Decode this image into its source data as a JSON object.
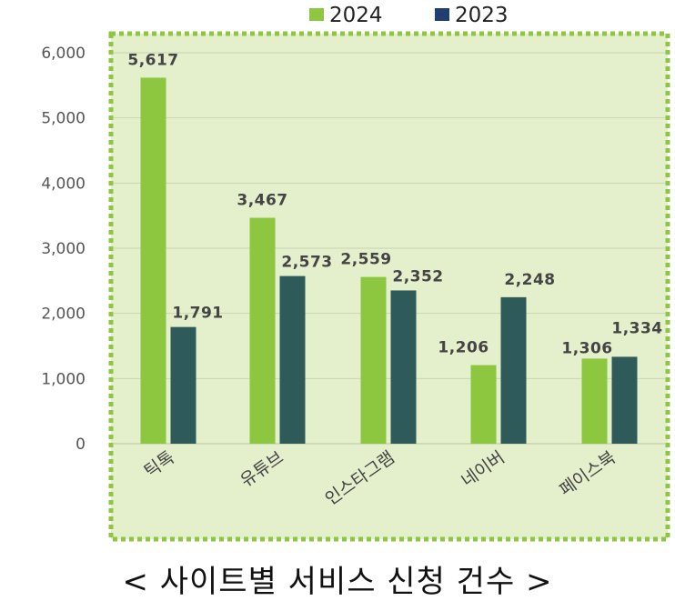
{
  "chart_data": {
    "type": "bar",
    "title": "",
    "xlabel": "",
    "ylabel": "",
    "categories": [
      "틱톡",
      "유튜브",
      "인스타그램",
      "네이버",
      "페이스북"
    ],
    "series": [
      {
        "name": "2024",
        "values": [
          5617,
          3467,
          2559,
          1206,
          1306
        ],
        "labels": [
          "5,617",
          "3,467",
          "2,559",
          "1,206",
          "1,306"
        ],
        "color": "#8dc63f"
      },
      {
        "name": "2023",
        "values": [
          1791,
          2573,
          2352,
          2248,
          1334
        ],
        "labels": [
          "1,791",
          "2,573",
          "2,352",
          "2,248",
          "1,334"
        ],
        "color": "#2e5b5a"
      }
    ],
    "ylim": [
      0,
      6000
    ],
    "yticks": [
      "0",
      "1,000",
      "2,000",
      "3,000",
      "4,000",
      "5,000",
      "6,000"
    ],
    "ytick_values": [
      0,
      1000,
      2000,
      3000,
      4000,
      5000,
      6000
    ],
    "grid": true,
    "legend": "top",
    "legend_colors": [
      "#8dc63f",
      "#1f3f73"
    ],
    "plot_background": "#e4efcc",
    "border_color": "#8dc63f"
  },
  "caption": "< 사이트별 서비스 신청 건수 >"
}
